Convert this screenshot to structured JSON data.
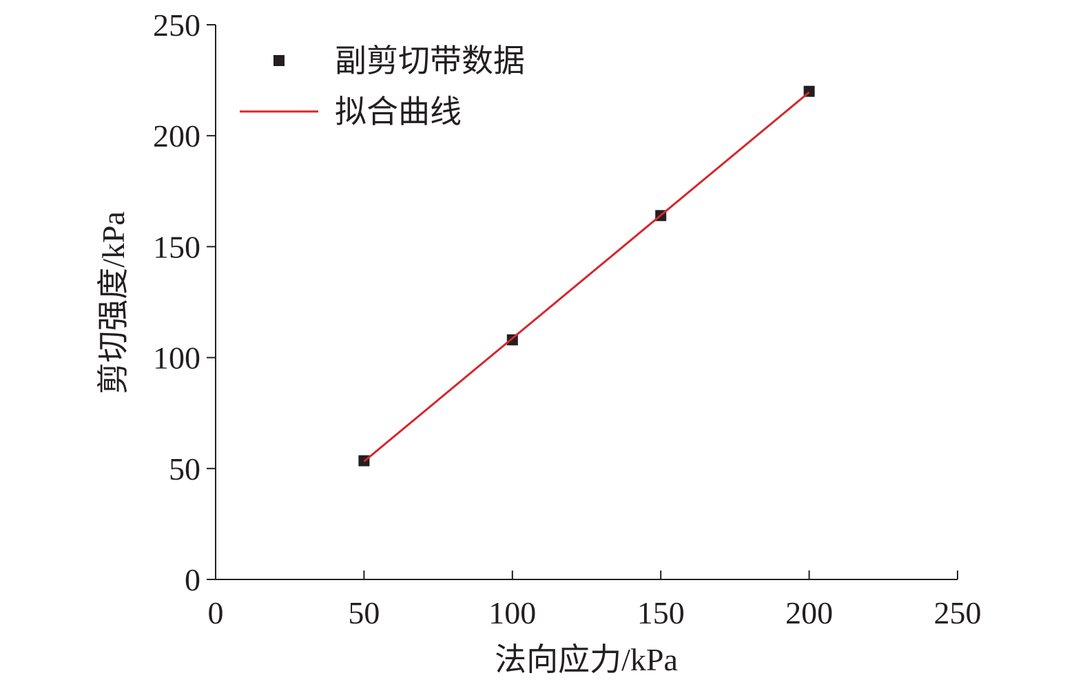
{
  "chart_data": {
    "type": "scatter",
    "title": "",
    "xlabel": "法向应力/kPa",
    "ylabel": "剪切强度/kPa",
    "xlim": [
      0,
      250
    ],
    "ylim": [
      0,
      250
    ],
    "xticks": [
      0,
      50,
      100,
      150,
      200,
      250
    ],
    "yticks": [
      0,
      50,
      100,
      150,
      200,
      250
    ],
    "grid": false,
    "legend_position": "top-left",
    "series": [
      {
        "name": "副剪切带数据",
        "kind": "scatter",
        "marker": "square",
        "color": "#231f20",
        "x": [
          50,
          100,
          150,
          200
        ],
        "y": [
          53.5,
          108,
          164,
          220
        ]
      },
      {
        "name": "拟合曲线",
        "kind": "line",
        "color": "#d7262b",
        "x": [
          50,
          200
        ],
        "y": [
          53.2,
          219.6
        ]
      }
    ]
  }
}
